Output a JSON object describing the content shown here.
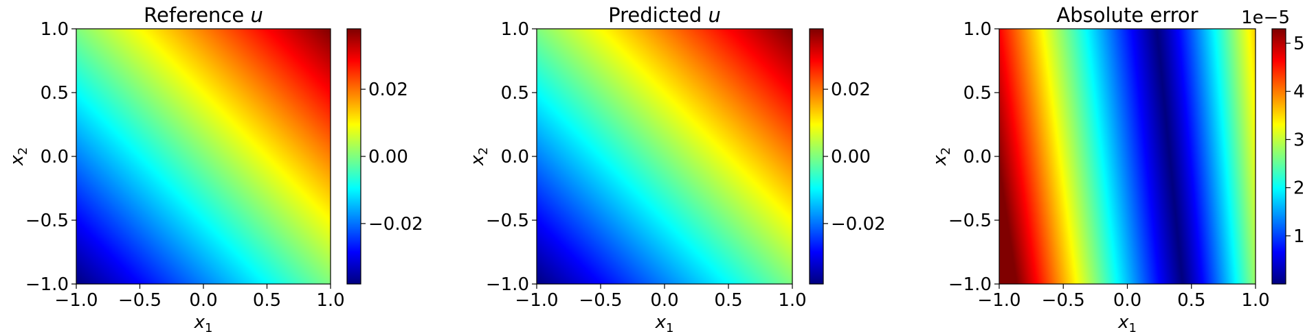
{
  "chart_data": [
    {
      "type": "heatmap",
      "title": "Reference u",
      "title_text": "Reference ",
      "title_var": "u",
      "xlabel": "x1",
      "ylabel": "x2",
      "xlim": [
        -1.0,
        1.0
      ],
      "ylim": [
        -1.0,
        1.0
      ],
      "xticks": [
        "−1.0",
        "−0.5",
        "0.0",
        "0.5",
        "1.0"
      ],
      "yticks": [
        "−1.0",
        "−0.5",
        "0.0",
        "0.5",
        "1.0"
      ],
      "colormap": "jet",
      "color_range": [
        -0.038,
        0.038
      ],
      "colorbar_ticks": [
        {
          "value": -0.02,
          "label": "−0.02"
        },
        {
          "value": 0.0,
          "label": "0.00"
        },
        {
          "value": 0.02,
          "label": "0.02"
        }
      ],
      "colorbar_offset": "",
      "field": "u = 0.019 (x1 + x2)"
    },
    {
      "type": "heatmap",
      "title": "Predicted u",
      "title_text": "Predicted ",
      "title_var": "u",
      "xlabel": "x1",
      "ylabel": "x2",
      "xlim": [
        -1.0,
        1.0
      ],
      "ylim": [
        -1.0,
        1.0
      ],
      "xticks": [
        "−1.0",
        "−0.5",
        "0.0",
        "0.5",
        "1.0"
      ],
      "yticks": [
        "−1.0",
        "−0.5",
        "0.0",
        "0.5",
        "1.0"
      ],
      "colormap": "jet",
      "color_range": [
        -0.038,
        0.038
      ],
      "colorbar_ticks": [
        {
          "value": -0.02,
          "label": "−0.02"
        },
        {
          "value": 0.0,
          "label": "0.00"
        },
        {
          "value": 0.02,
          "label": "0.02"
        }
      ],
      "colorbar_offset": "",
      "field": "u ≈ 0.019 (x1 + x2)"
    },
    {
      "type": "heatmap",
      "title": "Absolute error",
      "title_text": "Absolute error",
      "title_var": "",
      "xlabel": "x1",
      "ylabel": "x2",
      "xlim": [
        -1.0,
        1.0
      ],
      "ylim": [
        -1.0,
        1.0
      ],
      "xticks": [
        "−1.0",
        "−0.5",
        "0.0",
        "0.5",
        "1.0"
      ],
      "yticks": [
        "−1.0",
        "−0.5",
        "0.0",
        "0.5",
        "1.0"
      ],
      "colormap": "jet",
      "color_range": [
        0.0,
        5.3
      ],
      "colorbar_ticks": [
        {
          "value": 1,
          "label": "1"
        },
        {
          "value": 2,
          "label": "2"
        },
        {
          "value": 3,
          "label": "3"
        },
        {
          "value": 4,
          "label": "4"
        },
        {
          "value": 5,
          "label": "5"
        }
      ],
      "colorbar_offset": "1e−5",
      "field": "error near 0 along a band through x1 ≈ 0.3, up to ≈5.3e−5 at x1 = −1"
    }
  ]
}
